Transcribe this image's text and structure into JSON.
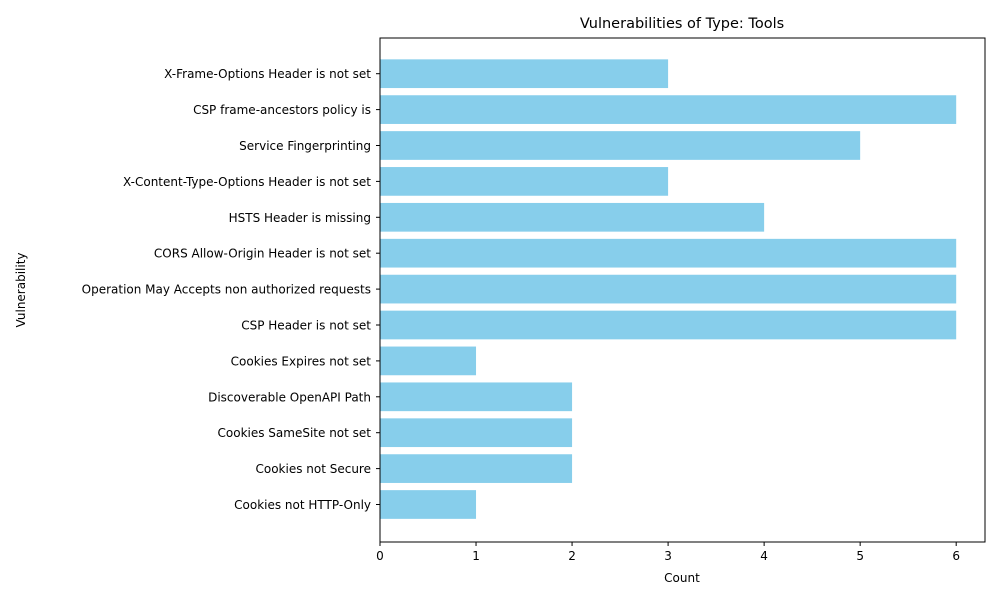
{
  "chart_data": {
    "type": "bar",
    "orientation": "horizontal",
    "title": "Vulnerabilities of Type: Tools",
    "xlabel": "Count",
    "ylabel": "Vulnerability",
    "xlim": [
      0,
      6.3
    ],
    "xticks": [
      0,
      1,
      2,
      3,
      4,
      5,
      6
    ],
    "grid": false,
    "bar_color": "#87ceeb",
    "categories": [
      "Cookies not HTTP-Only",
      "Cookies not Secure",
      "Cookies SameSite not set",
      "Discoverable OpenAPI Path",
      "Cookies Expires not set",
      "CSP Header is not set",
      "Operation May Accepts non authorized requests",
      "CORS Allow-Origin Header is not set",
      "HSTS Header is missing",
      "X-Content-Type-Options Header is not set",
      "Service Fingerprinting",
      "CSP frame-ancestors policy is",
      "X-Frame-Options Header is not set"
    ],
    "values": [
      1,
      2,
      2,
      2,
      1,
      6,
      6,
      6,
      4,
      3,
      5,
      6,
      3
    ]
  }
}
